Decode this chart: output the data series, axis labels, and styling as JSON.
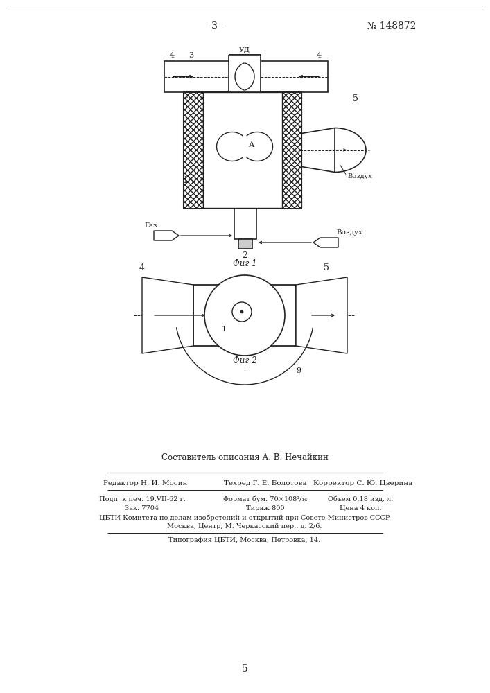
{
  "page_number": "- 3 -",
  "patent_number": "№ 148872",
  "fig1_caption": "Фиг 1",
  "fig2_caption": "Фиг 2",
  "author_line": "Составитель описания А. В. Нечайкин",
  "editor_label": "Редактор",
  "editor_name": "Н. И. Мосин",
  "tech_label": "Техред",
  "tech_name": "Г. Е. Болотова",
  "corrector_label": "Корректор",
  "corrector_name": "С. Ю. Цверина",
  "info_r1c1": "Подп. к печ. 19.VII-62 г.",
  "info_r1c2": "Формат бум. 70×108¹/₁₆",
  "info_r1c3": "Объем 0,18 изд. л.",
  "info_r2c1": "Зак. 7704",
  "info_r2c2": "Тираж 800",
  "info_r2c3": "Цена 4 коп.",
  "info_line_org": "ЦБТИ Комитета по делам изобретений и открытий при Совете Министров СССР",
  "info_line_addr": "Москва, Центр, М. Черкасский пер., д. 2/6.",
  "info_line_print": "Типография ЦБТИ, Москва, Петровка, 14.",
  "page_bottom": "5",
  "bg_color": "#ffffff",
  "line_color": "#222222",
  "text_color": "#222222"
}
